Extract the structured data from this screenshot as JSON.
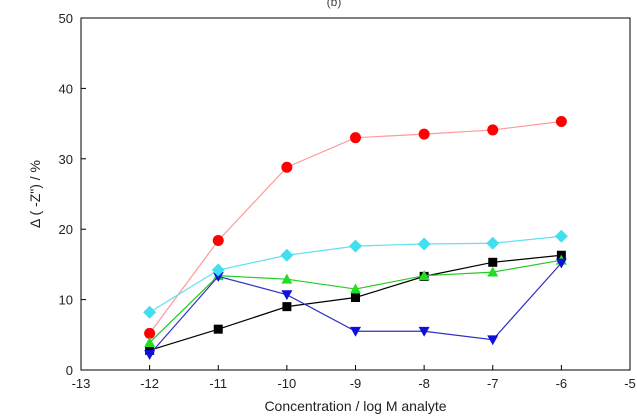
{
  "chart_data": {
    "type": "line",
    "title": "(b)",
    "xlabel": "Concentration / log M analyte",
    "ylabel": "Δ ( -Z\") / %",
    "xlim": [
      -13,
      -5
    ],
    "ylim": [
      0,
      50
    ],
    "xticks": [
      -13,
      -12,
      -11,
      -10,
      -9,
      -8,
      -7,
      -6,
      -5
    ],
    "yticks": [
      0,
      10,
      20,
      30,
      40,
      50
    ],
    "grid": false,
    "legend": "none",
    "series": [
      {
        "color": "#000000",
        "line_color": "#000000",
        "marker": "square",
        "x": [
          -12,
          -11,
          -10,
          -9,
          -8,
          -7,
          -6
        ],
        "y": [
          2.8,
          5.8,
          9.0,
          10.3,
          13.3,
          15.3,
          16.3
        ]
      },
      {
        "color": "#ff0000",
        "line_color": "#ff9999",
        "marker": "circle",
        "x": [
          -12,
          -11,
          -10,
          -9,
          -8,
          -7,
          -6
        ],
        "y": [
          5.2,
          18.4,
          28.8,
          33.0,
          33.5,
          34.1,
          35.3
        ]
      },
      {
        "color": "#22dd22",
        "line_color": "#22cc22",
        "marker": "triangle-up",
        "x": [
          -12,
          -11,
          -10,
          -9,
          -8,
          -7,
          -6
        ],
        "y": [
          3.9,
          13.4,
          12.9,
          11.5,
          13.4,
          13.9,
          15.6
        ]
      },
      {
        "color": "#1010dd",
        "line_color": "#3030c0",
        "marker": "triangle-down",
        "x": [
          -12,
          -11,
          -10,
          -9,
          -8,
          -7,
          -6
        ],
        "y": [
          2.2,
          13.3,
          10.7,
          5.5,
          5.5,
          4.3,
          15.2
        ]
      },
      {
        "color": "#40e0f0",
        "line_color": "#60e0f0",
        "marker": "diamond",
        "x": [
          -12,
          -11,
          -10,
          -9,
          -8,
          -7,
          -6
        ],
        "y": [
          8.2,
          14.2,
          16.3,
          17.6,
          17.9,
          18.0,
          19.0
        ]
      }
    ]
  }
}
